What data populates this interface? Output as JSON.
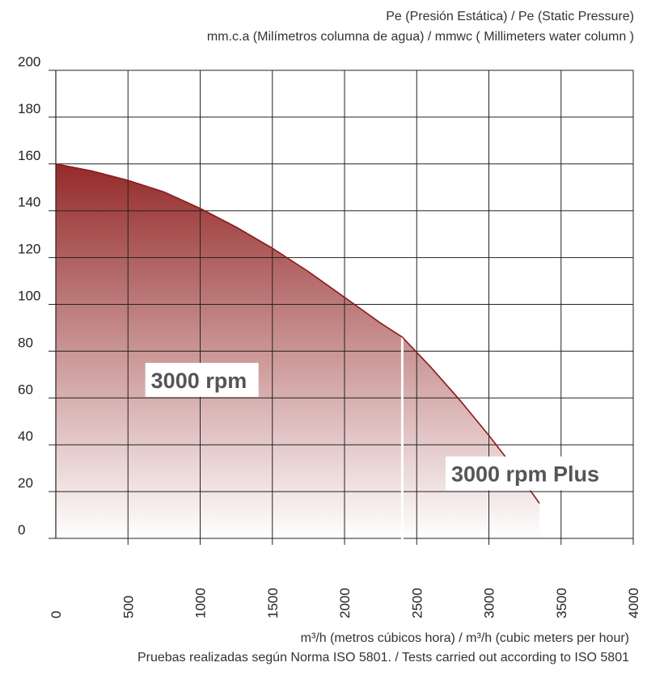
{
  "titles": {
    "line1": "Pe (Presión Estática) /  Pe (Static Pressure)",
    "line2": "mm.c.a (Milímetros columna de agua) / mmwc ( Millimeters water column )"
  },
  "footer": {
    "line1": "m³/h (metros cúbicos hora) / m³/h (cubic meters per hour)",
    "line2": "Pruebas realizadas según Norma ISO 5801. / Tests carried out according to ISO 5801"
  },
  "chart_data": {
    "type": "area",
    "xlim": [
      0,
      4000
    ],
    "ylim": [
      0,
      200
    ],
    "x_ticks": [
      "0",
      "500",
      "1000",
      "1500",
      "2000",
      "2500",
      "3000",
      "3500",
      "4000"
    ],
    "y_ticks": [
      "0",
      "20",
      "40",
      "60",
      "80",
      "100",
      "120",
      "140",
      "160",
      "180",
      "200"
    ],
    "grid": true,
    "colors": {
      "curve": "#8b1a1a",
      "fill_top": "#8f1f1f",
      "fill_bottom": "#ffffff",
      "grid": "#222222"
    },
    "series": [
      {
        "name": "3000 rpm",
        "x": [
          0,
          250,
          500,
          750,
          1000,
          1250,
          1500,
          1750,
          2000,
          2250,
          2400
        ],
        "y": [
          160,
          157,
          153,
          148,
          141,
          133,
          124,
          114,
          103,
          92,
          86
        ]
      },
      {
        "name": "3000 rpm Plus",
        "x": [
          2400,
          2600,
          2800,
          3000,
          3200,
          3350
        ],
        "y": [
          86,
          73,
          59,
          44,
          28,
          15
        ]
      }
    ],
    "divider_x": 2400
  }
}
